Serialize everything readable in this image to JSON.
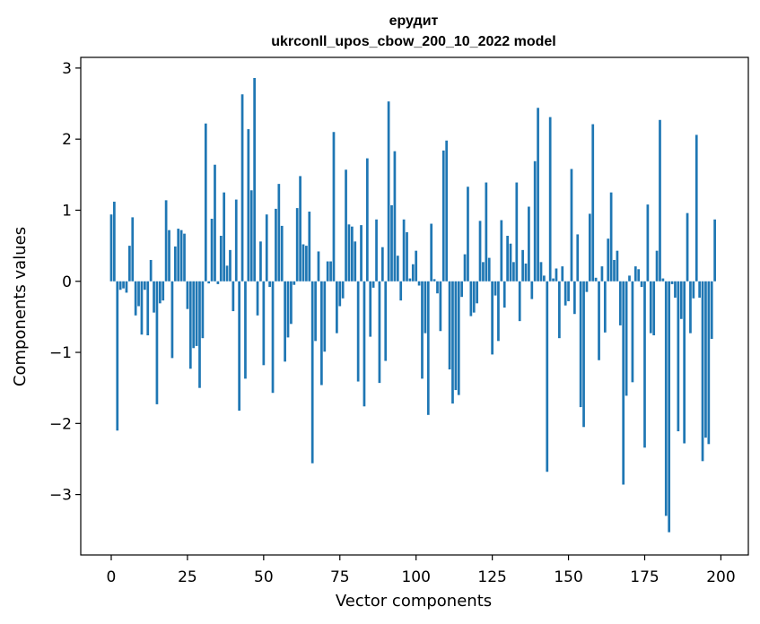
{
  "chart_data": {
    "type": "bar",
    "title_line1": "ерудит",
    "title_line2": "ukrconll_upos_cbow_200_10_2022 model",
    "xlabel": "Vector components",
    "ylabel": "Components values",
    "xlim": [
      -10,
      209
    ],
    "ylim": [
      -3.85,
      3.15
    ],
    "xticks": [
      0,
      25,
      50,
      75,
      100,
      125,
      150,
      175,
      200
    ],
    "xtick_labels": [
      "0",
      "25",
      "50",
      "75",
      "100",
      "125",
      "150",
      "175",
      "200"
    ],
    "yticks": [
      -3,
      -2,
      -1,
      0,
      1,
      2,
      3
    ],
    "ytick_labels": [
      "−3",
      "−2",
      "−1",
      "0",
      "1",
      "2",
      "3"
    ],
    "bar_color": "#1f77b4",
    "values": [
      0.94,
      1.12,
      -2.1,
      -0.12,
      -0.1,
      -0.16,
      0.5,
      0.9,
      -0.48,
      -0.35,
      -0.75,
      -0.12,
      -0.76,
      0.3,
      -0.44,
      -1.73,
      -0.31,
      -0.27,
      1.14,
      0.72,
      -1.08,
      0.49,
      0.74,
      0.72,
      0.67,
      -0.39,
      -1.23,
      -0.94,
      -0.91,
      -1.5,
      -0.8,
      2.22,
      -0.03,
      0.88,
      1.64,
      -0.04,
      0.64,
      1.25,
      0.22,
      0.44,
      -0.42,
      1.15,
      -1.82,
      2.63,
      -1.37,
      2.14,
      1.28,
      2.86,
      -0.48,
      0.56,
      -1.18,
      0.94,
      -0.08,
      -1.57,
      1.02,
      1.37,
      0.78,
      -1.13,
      -0.79,
      -0.6,
      -0.05,
      1.03,
      1.48,
      0.52,
      0.5,
      0.98,
      -2.56,
      -0.84,
      0.42,
      -1.46,
      -0.99,
      0.28,
      0.28,
      2.1,
      -0.73,
      -0.35,
      -0.24,
      1.57,
      0.8,
      0.77,
      0.56,
      -1.41,
      0.79,
      -1.76,
      1.73,
      -0.78,
      -0.09,
      0.87,
      -1.43,
      0.48,
      -1.12,
      2.53,
      1.07,
      1.83,
      0.36,
      -0.27,
      0.87,
      0.69,
      0.04,
      0.24,
      0.43,
      -0.06,
      -1.37,
      -0.73,
      -1.88,
      0.81,
      0.03,
      -0.17,
      -0.7,
      1.84,
      1.98,
      -1.24,
      -1.72,
      -1.53,
      -1.6,
      -0.22,
      0.38,
      1.33,
      -0.49,
      -0.44,
      -0.31,
      0.85,
      0.27,
      1.39,
      0.33,
      -1.03,
      -0.2,
      -0.84,
      0.86,
      -0.37,
      0.64,
      0.53,
      0.27,
      1.39,
      -0.56,
      0.44,
      0.25,
      1.05,
      -0.25,
      1.69,
      2.44,
      0.27,
      0.08,
      -2.68,
      2.31,
      0.04,
      0.18,
      -0.8,
      0.21,
      -0.34,
      -0.28,
      1.58,
      -0.46,
      0.66,
      -1.77,
      -2.05,
      -0.15,
      0.95,
      2.21,
      0.05,
      -1.11,
      0.21,
      -0.72,
      0.6,
      1.25,
      0.3,
      0.43,
      -0.62,
      -2.86,
      -1.61,
      0.08,
      -1.42,
      0.21,
      0.17,
      -0.08,
      -2.34,
      1.08,
      -0.73,
      -0.76,
      0.43,
      2.27,
      0.04,
      -3.3,
      -3.53,
      -0.04,
      -0.23,
      -2.11,
      -0.53,
      -2.28,
      0.96,
      -0.73,
      -0.24,
      2.06,
      -0.23,
      -2.53,
      -2.2,
      -2.29,
      -0.81,
      0.87
    ]
  }
}
